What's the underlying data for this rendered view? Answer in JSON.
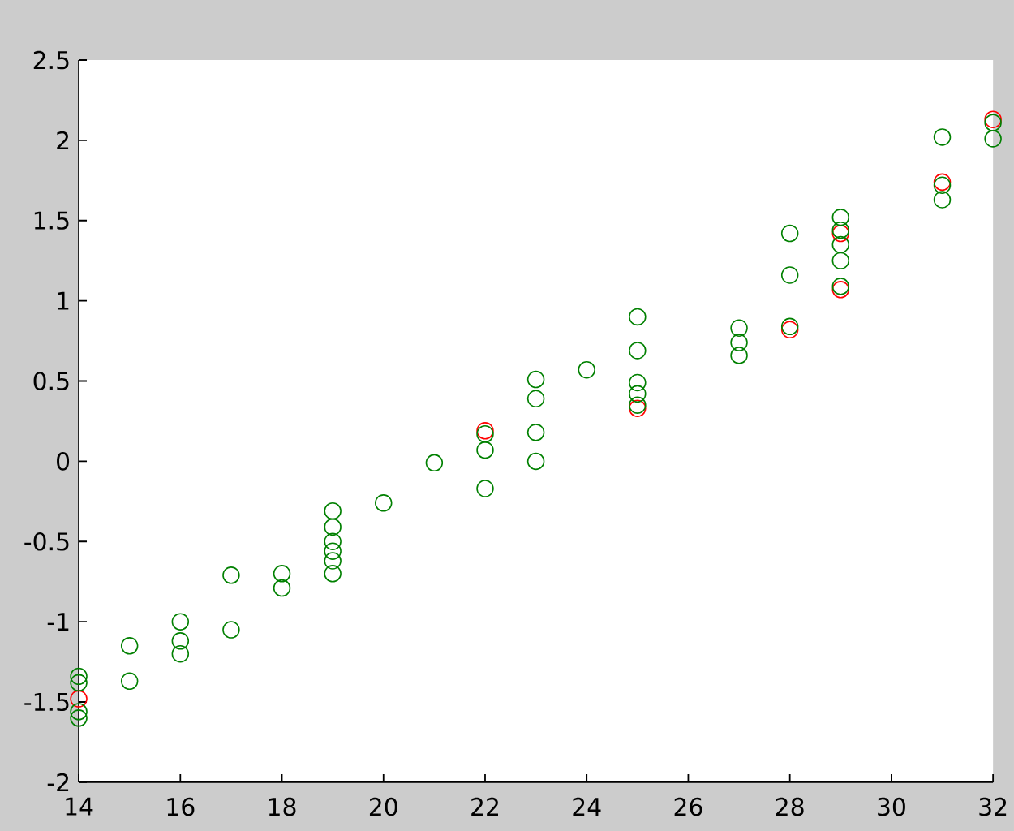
{
  "chart_data": {
    "type": "scatter",
    "xlim": [
      14,
      32
    ],
    "ylim": [
      -2,
      2.5
    ],
    "xticks": [
      14,
      16,
      18,
      20,
      22,
      24,
      26,
      28,
      30,
      32
    ],
    "yticks": [
      -2,
      -1.5,
      -1,
      -0.5,
      0,
      0.5,
      1,
      1.5,
      2,
      2.5
    ],
    "marker": "circle",
    "grid": false,
    "series": [
      {
        "color": "#ff0000",
        "x": [
          14,
          22,
          25,
          28,
          29,
          29,
          31,
          32
        ],
        "values": [
          -1.48,
          0.19,
          0.33,
          0.82,
          1.07,
          1.42,
          1.74,
          2.13
        ]
      },
      {
        "color": "#008000",
        "x": [
          14,
          14,
          14,
          14,
          15,
          15,
          16,
          16,
          16,
          17,
          17,
          18,
          18,
          19,
          19,
          19,
          19,
          19,
          19,
          20,
          21,
          22,
          22,
          22,
          23,
          23,
          23,
          23,
          24,
          25,
          25,
          25,
          25,
          25,
          27,
          27,
          27,
          28,
          28,
          28,
          29,
          29,
          29,
          29,
          29,
          31,
          31,
          31,
          32,
          32
        ],
        "values": [
          -1.34,
          -1.38,
          -1.56,
          -1.6,
          -1.15,
          -1.37,
          -1.0,
          -1.12,
          -1.2,
          -0.71,
          -1.05,
          -0.7,
          -0.79,
          -0.31,
          -0.41,
          -0.5,
          -0.56,
          -0.62,
          -0.7,
          -0.26,
          -0.01,
          0.17,
          0.07,
          -0.17,
          0.51,
          0.39,
          0.18,
          0.0,
          0.57,
          0.9,
          0.69,
          0.49,
          0.42,
          0.35,
          0.83,
          0.74,
          0.66,
          1.42,
          1.16,
          0.84,
          1.52,
          1.44,
          1.35,
          1.25,
          1.09,
          2.02,
          1.72,
          1.63,
          2.11,
          2.01
        ]
      }
    ]
  }
}
